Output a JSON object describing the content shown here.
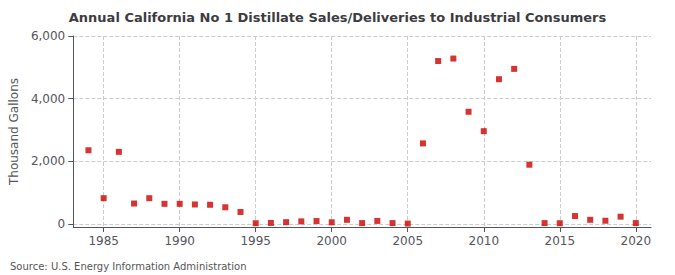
{
  "chart_data": {
    "type": "scatter",
    "title": "Annual California No 1 Distillate Sales/Deliveries to Industrial Consumers",
    "ylabel": "Thousand Gallons",
    "annotations": [
      "Source: U.S. Energy Information Administration"
    ],
    "color": "#cc0000",
    "marker": "square",
    "grid": true,
    "xlim": [
      1983,
      2021
    ],
    "ylim": [
      -100,
      6000
    ],
    "xticks": [
      1985,
      1990,
      1995,
      2000,
      2005,
      2010,
      2015,
      2020
    ],
    "yticks": [
      0,
      {
        "value": 2000,
        "label": "2,000"
      },
      {
        "value": 4000,
        "label": "4,000"
      },
      {
        "value": 6000,
        "label": "6,000"
      }
    ],
    "x": [
      1984,
      1985,
      1986,
      1987,
      1988,
      1989,
      1990,
      1991,
      1992,
      1993,
      1994,
      1995,
      1996,
      1997,
      1998,
      1999,
      2000,
      2001,
      2002,
      2003,
      2004,
      2005,
      2006,
      2007,
      2008,
      2009,
      2010,
      2011,
      2012,
      2013,
      2014,
      2015,
      2016,
      2017,
      2018,
      2019,
      2020
    ],
    "values": [
      2350,
      820,
      2300,
      650,
      820,
      640,
      640,
      620,
      610,
      530,
      380,
      20,
      30,
      55,
      80,
      90,
      50,
      130,
      25,
      95,
      25,
      10,
      2570,
      5200,
      5280,
      3580,
      2960,
      4620,
      4950,
      1890,
      25,
      20,
      250,
      130,
      100,
      230,
      25
    ]
  }
}
